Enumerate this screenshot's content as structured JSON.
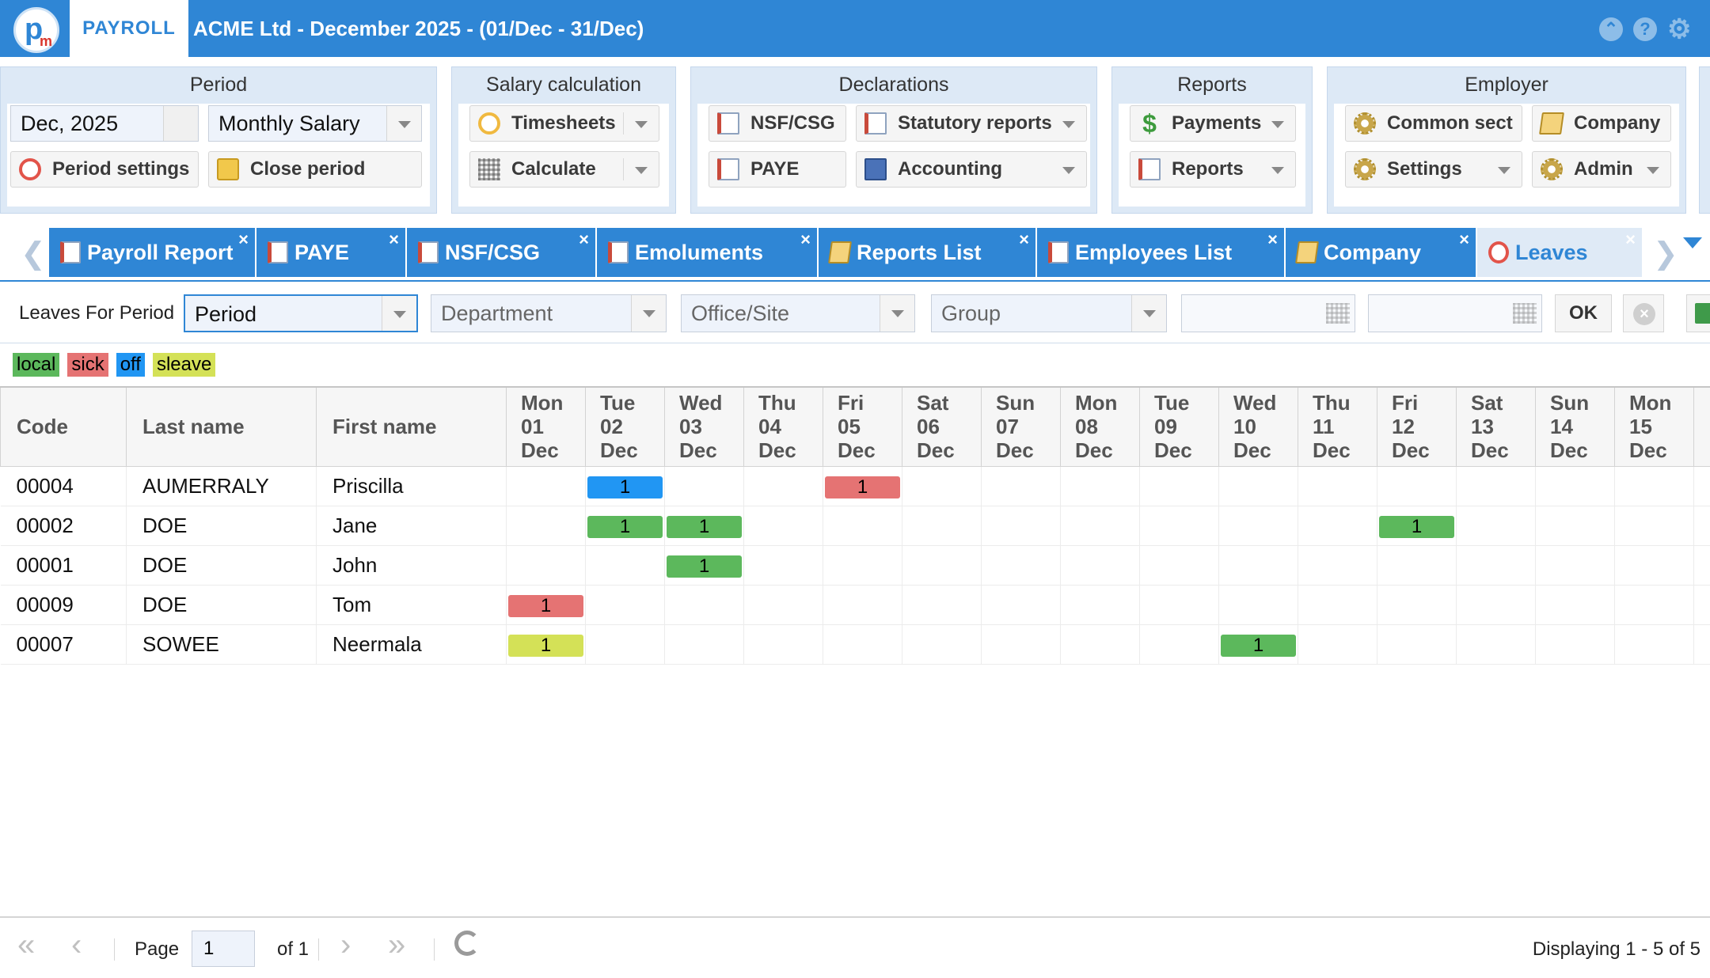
{
  "app": {
    "tab_label": "PAYROLL",
    "title": "ACME Ltd - December 2025 - (01/Dec - 31/Dec)"
  },
  "ribbon": {
    "period": {
      "title": "Period",
      "date_value": "Dec, 2025",
      "salary_type": "Monthly Salary",
      "period_settings": "Period settings",
      "close_period": "Close period"
    },
    "salary": {
      "title": "Salary calculation",
      "timesheets": "Timesheets",
      "calculate": "Calculate"
    },
    "declarations": {
      "title": "Declarations",
      "nsf": "NSF/CSG",
      "statutory": "Statutory reports",
      "paye": "PAYE",
      "accounting": "Accounting"
    },
    "reports": {
      "title": "Reports",
      "payments": "Payments",
      "reports": "Reports"
    },
    "employer": {
      "title": "Employer",
      "common": "Common sect",
      "company": "Company",
      "settings": "Settings",
      "admin": "Admin"
    }
  },
  "tabs": [
    {
      "label": "Payroll Report"
    },
    {
      "label": "PAYE"
    },
    {
      "label": "NSF/CSG"
    },
    {
      "label": "Emoluments"
    },
    {
      "label": "Reports List"
    },
    {
      "label": "Employees List"
    },
    {
      "label": "Company"
    },
    {
      "label": "Leaves"
    }
  ],
  "filter": {
    "label": "Leaves For Period",
    "period": "Period",
    "department": "Department",
    "office": "Office/Site",
    "group": "Group",
    "ok": "OK"
  },
  "legend": [
    {
      "label": "local",
      "color": "#5cb85c"
    },
    {
      "label": "sick",
      "color": "#e57373"
    },
    {
      "label": "off",
      "color": "#2196f3"
    },
    {
      "label": "sleave",
      "color": "#d4e157"
    }
  ],
  "grid": {
    "headers": {
      "code": "Code",
      "last": "Last name",
      "first": "First name"
    },
    "days": [
      {
        "dow": "Mon",
        "d": "01",
        "m": "Dec"
      },
      {
        "dow": "Tue",
        "d": "02",
        "m": "Dec"
      },
      {
        "dow": "Wed",
        "d": "03",
        "m": "Dec"
      },
      {
        "dow": "Thu",
        "d": "04",
        "m": "Dec"
      },
      {
        "dow": "Fri",
        "d": "05",
        "m": "Dec"
      },
      {
        "dow": "Sat",
        "d": "06",
        "m": "Dec"
      },
      {
        "dow": "Sun",
        "d": "07",
        "m": "Dec"
      },
      {
        "dow": "Mon",
        "d": "08",
        "m": "Dec"
      },
      {
        "dow": "Tue",
        "d": "09",
        "m": "Dec"
      },
      {
        "dow": "Wed",
        "d": "10",
        "m": "Dec"
      },
      {
        "dow": "Thu",
        "d": "11",
        "m": "Dec"
      },
      {
        "dow": "Fri",
        "d": "12",
        "m": "Dec"
      },
      {
        "dow": "Sat",
        "d": "13",
        "m": "Dec"
      },
      {
        "dow": "Sun",
        "d": "14",
        "m": "Dec"
      },
      {
        "dow": "Mon",
        "d": "15",
        "m": "Dec"
      }
    ],
    "rows": [
      {
        "code": "00004",
        "last": "AUMERRALY",
        "first": "Priscilla",
        "leaves": [
          {
            "day": 1,
            "type": "off",
            "value": "1"
          },
          {
            "day": 4,
            "type": "sick",
            "value": "1"
          }
        ]
      },
      {
        "code": "00002",
        "last": "DOE",
        "first": "Jane",
        "leaves": [
          {
            "day": 1,
            "type": "local",
            "value": "1"
          },
          {
            "day": 2,
            "type": "local",
            "value": "1"
          },
          {
            "day": 11,
            "type": "local",
            "value": "1"
          }
        ]
      },
      {
        "code": "00001",
        "last": "DOE",
        "first": "John",
        "leaves": [
          {
            "day": 2,
            "type": "local",
            "value": "1"
          }
        ]
      },
      {
        "code": "00009",
        "last": "DOE",
        "first": "Tom",
        "leaves": [
          {
            "day": 0,
            "type": "sick",
            "value": "1"
          }
        ]
      },
      {
        "code": "00007",
        "last": "SOWEE",
        "first": "Neermala",
        "leaves": [
          {
            "day": 0,
            "type": "sleave",
            "value": "1"
          },
          {
            "day": 9,
            "type": "local",
            "value": "1"
          }
        ]
      }
    ]
  },
  "pager": {
    "page_label": "Page",
    "page_value": "1",
    "of_label": "of 1",
    "display": "Displaying 1 - 5 of 5"
  }
}
